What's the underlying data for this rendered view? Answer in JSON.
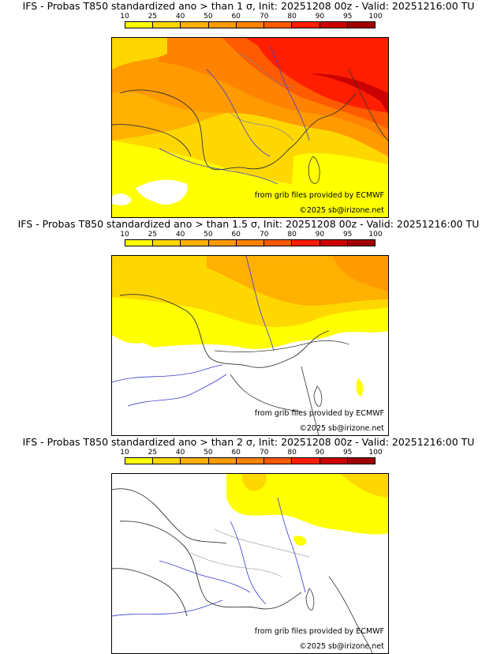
{
  "legend": {
    "ticks": [
      "10",
      "25",
      "40",
      "50",
      "60",
      "70",
      "80",
      "90",
      "95",
      "100"
    ],
    "colors": [
      "#ffff00",
      "#ffd700",
      "#ffb000",
      "#ff9a00",
      "#ff8200",
      "#ff5a00",
      "#ff1e00",
      "#cc0000",
      "#a00000",
      "#5a0000"
    ]
  },
  "panels": [
    {
      "title": "IFS - Probas T850  standardized ano > than 1 σ, Init: 20251208 00z - Valid: 20251216:00 TU",
      "source_text": "from grib files provided by ECMWF",
      "copyright_text": "©2025 sb@irizone.net"
    },
    {
      "title": "IFS - Probas T850  standardized ano > than 1.5 σ, Init: 20251208 00z - Valid: 20251216:00 TU",
      "source_text": "from grib files provided by ECMWF",
      "copyright_text": "©2025 sb@irizone.net"
    },
    {
      "title": "IFS - Probas T850  standardized ano > than 2 σ, Init: 20251208 00z - Valid: 20251216:00 TU",
      "source_text": "from grib files provided by ECMWF",
      "copyright_text": "©2025 sb@irizone.net"
    }
  ]
}
